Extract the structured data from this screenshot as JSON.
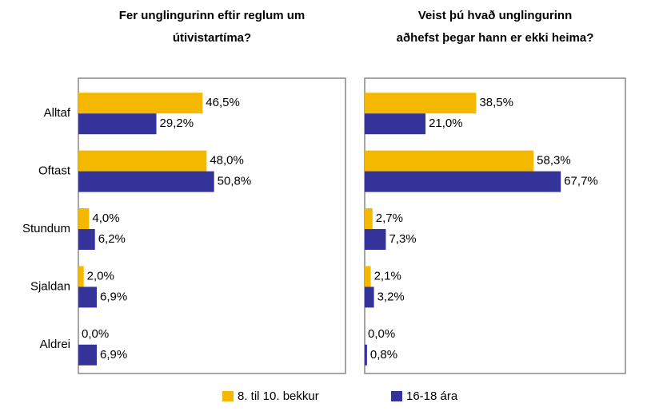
{
  "chart_data": [
    {
      "type": "barh",
      "title": [
        "Fer unglingurinn eftir reglum um",
        "útivistartíma?"
      ],
      "categories": [
        "Alltaf",
        "Oftast",
        "Stundum",
        "Sjaldan",
        "Aldrei"
      ],
      "xlim": [
        0,
        100
      ],
      "series": [
        {
          "name": "8. til 10. bekkur",
          "color": "#f5b800",
          "values": [
            46.5,
            48.0,
            4.0,
            2.0,
            0.0
          ],
          "value_labels": [
            "46,5%",
            "48,0%",
            "4,0%",
            "2,0%",
            "0,0%"
          ]
        },
        {
          "name": "16-18 ára",
          "color": "#33339a",
          "values": [
            29.2,
            50.8,
            6.2,
            6.9,
            6.9
          ],
          "value_labels": [
            "29,2%",
            "50,8%",
            "6,2%",
            "6,9%",
            "6,9%"
          ]
        }
      ]
    },
    {
      "type": "barh",
      "title": [
        "Veist þú hvað unglingurinn",
        "aðhefst þegar hann er ekki heima?"
      ],
      "xlim": [
        0,
        90
      ],
      "series": [
        {
          "name": "8. til 10. bekkur",
          "color": "#f5b800",
          "values": [
            38.5,
            58.3,
            2.7,
            2.1,
            0.0
          ],
          "value_labels": [
            "38,5%",
            "58,3%",
            "2,7%",
            "2,1%",
            "0,0%"
          ]
        },
        {
          "name": "16-18 ára",
          "color": "#33339a",
          "values": [
            21.0,
            67.7,
            7.3,
            3.2,
            0.8
          ],
          "value_labels": [
            "21,0%",
            "67,7%",
            "7,3%",
            "3,2%",
            "0,8%"
          ]
        }
      ]
    }
  ]
}
